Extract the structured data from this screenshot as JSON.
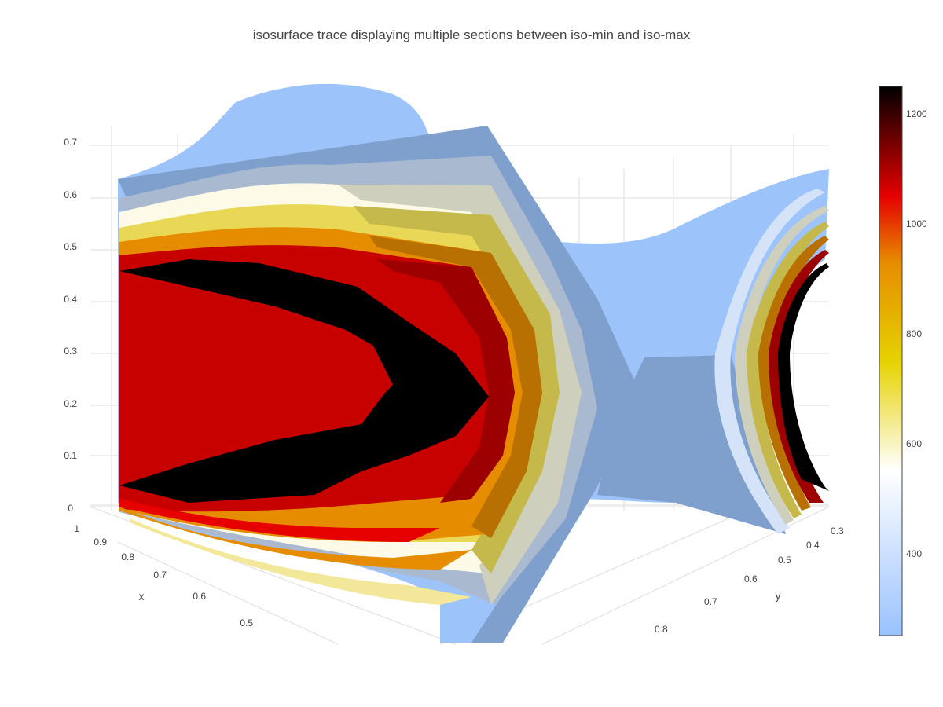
{
  "chart_data": {
    "type": "isosurface",
    "title": "isosurface trace displaying multiple sections between iso-min and iso-max",
    "axes": {
      "x": {
        "title": "x",
        "ticks": [
          "1",
          "0.9",
          "0.8",
          "0.7",
          "0.6",
          "0.5"
        ]
      },
      "y": {
        "title": "y",
        "ticks": [
          "0.3",
          "0.4",
          "0.5",
          "0.6",
          "0.7",
          "0.8"
        ]
      },
      "z": {
        "title": "",
        "ticks": [
          "0",
          "0.1",
          "0.2",
          "0.3",
          "0.4",
          "0.5",
          "0.6",
          "0.7"
        ]
      }
    },
    "colorbar": {
      "ticks": [
        "1200",
        "1000",
        "800",
        "600",
        "400"
      ],
      "range": [
        250,
        1250
      ],
      "colorscale": [
        "#99c2ff",
        "#ffffff",
        "#e6d200",
        "#e68c00",
        "#e60000",
        "#000000"
      ]
    },
    "sections": [
      {
        "iso": 300,
        "color": "#7fa0cc"
      },
      {
        "iso": 450,
        "color": "#a9b9d0"
      },
      {
        "iso": 600,
        "color": "#cfcfbd"
      },
      {
        "iso": 750,
        "color": "#c4b94a"
      },
      {
        "iso": 900,
        "color": "#b87000"
      },
      {
        "iso": 1050,
        "color": "#9c0000"
      },
      {
        "iso": 1200,
        "color": "#000000"
      }
    ]
  }
}
